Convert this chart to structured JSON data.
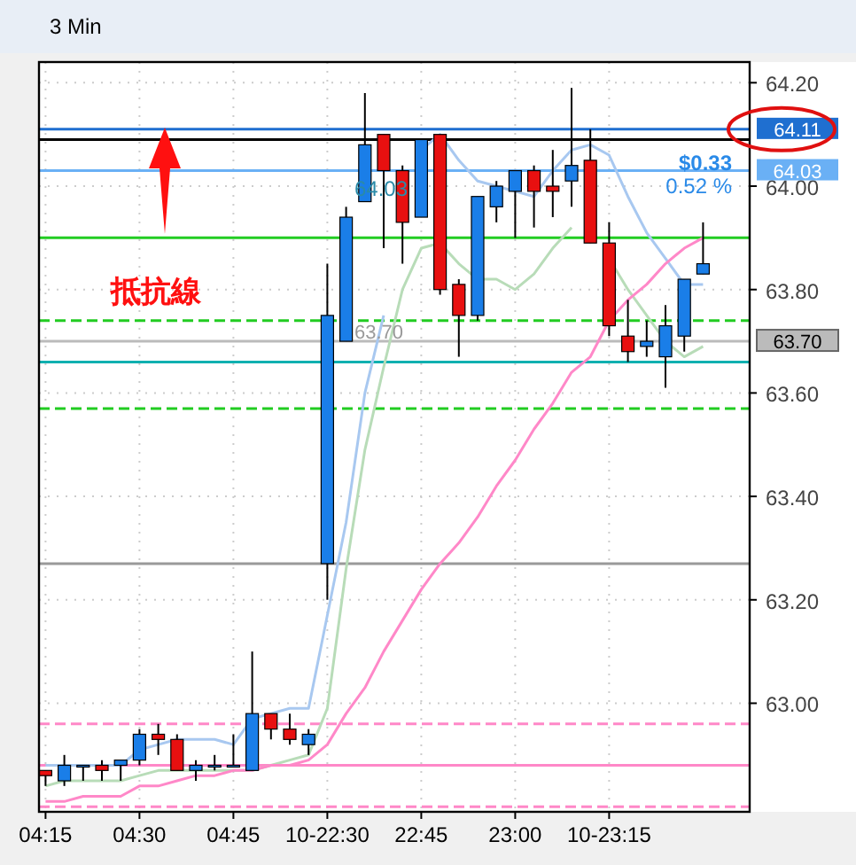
{
  "chart_data": {
    "type": "candlestick",
    "title": "3 Min",
    "categories": [
      "04:15",
      null,
      null,
      null,
      null,
      "04:30",
      null,
      null,
      null,
      null,
      "04:45",
      null,
      null,
      null,
      null,
      "10-22:30",
      null,
      null,
      null,
      null,
      "22:45",
      null,
      null,
      null,
      null,
      "23:00",
      null,
      null,
      null,
      null,
      "10-23:15",
      null,
      null,
      null,
      null,
      null
    ],
    "ohlc": [
      [
        62.87,
        62.87,
        62.84,
        62.86
      ],
      [
        62.85,
        62.9,
        62.84,
        62.88
      ],
      [
        62.88,
        62.88,
        62.85,
        62.88
      ],
      [
        62.88,
        62.89,
        62.85,
        62.87
      ],
      [
        62.88,
        62.89,
        62.85,
        62.89
      ],
      [
        62.89,
        62.95,
        62.88,
        62.94
      ],
      [
        62.94,
        62.96,
        62.9,
        62.93
      ],
      [
        62.93,
        62.94,
        62.87,
        62.87
      ],
      [
        62.87,
        62.89,
        62.85,
        62.88
      ],
      [
        62.88,
        62.9,
        62.87,
        62.88
      ],
      [
        62.88,
        62.94,
        62.88,
        62.88
      ],
      [
        62.87,
        63.1,
        62.87,
        62.98
      ],
      [
        62.98,
        62.98,
        62.93,
        62.95
      ],
      [
        62.95,
        62.98,
        62.92,
        62.93
      ],
      [
        62.92,
        62.95,
        62.9,
        62.94
      ],
      [
        63.27,
        63.85,
        63.2,
        63.75
      ],
      [
        63.7,
        63.96,
        63.7,
        63.94
      ],
      [
        63.97,
        64.18,
        63.97,
        64.08
      ],
      [
        64.1,
        64.1,
        63.88,
        64.03
      ],
      [
        64.03,
        64.04,
        63.85,
        63.93
      ],
      [
        63.94,
        64.09,
        63.94,
        64.09
      ],
      [
        64.1,
        64.1,
        63.79,
        63.8
      ],
      [
        63.81,
        63.82,
        63.67,
        63.75
      ],
      [
        63.75,
        63.98,
        63.74,
        63.98
      ],
      [
        63.96,
        64.01,
        63.93,
        64.0
      ],
      [
        63.99,
        64.03,
        63.9,
        64.03
      ],
      [
        64.03,
        64.04,
        63.92,
        63.99
      ],
      [
        64.0,
        64.07,
        63.94,
        63.99
      ],
      [
        64.01,
        64.19,
        63.96,
        64.04
      ],
      [
        64.05,
        64.11,
        63.89,
        63.89
      ],
      [
        63.89,
        63.93,
        63.71,
        63.73
      ],
      [
        63.71,
        63.78,
        63.66,
        63.68
      ],
      [
        63.69,
        63.74,
        63.67,
        63.7
      ],
      [
        63.67,
        63.77,
        63.61,
        63.73
      ],
      [
        63.71,
        63.82,
        63.68,
        63.82
      ],
      [
        63.83,
        63.93,
        63.83,
        63.85
      ]
    ],
    "colors": [
      "#e81010",
      "#1a7ee8",
      "#1a7ee8",
      "#e81010",
      "#1a7ee8",
      "#1a7ee8",
      "#e81010",
      "#e81010",
      "#1a7ee8",
      "#1a7ee8",
      "#1a7ee8",
      "#1a7ee8",
      "#e81010",
      "#e81010",
      "#1a7ee8",
      "#1a7ee8",
      "#1a7ee8",
      "#1a7ee8",
      "#e81010",
      "#e81010",
      "#1a7ee8",
      "#e81010",
      "#e81010",
      "#1a7ee8",
      "#1a7ee8",
      "#1a7ee8",
      "#e81010",
      "#e81010",
      "#1a7ee8",
      "#e81010",
      "#e81010",
      "#e81010",
      "#1a7ee8",
      "#1a7ee8",
      "#1a7ee8",
      "#1a7ee8"
    ],
    "series": [
      {
        "type": "line",
        "color": "#a8c8f0",
        "values": [
          62.88,
          62.88,
          62.88,
          62.88,
          62.88,
          62.91,
          62.92,
          62.93,
          62.93,
          62.93,
          62.92,
          62.97,
          62.98,
          62.99,
          62.99,
          63.17,
          63.35,
          63.6,
          63.75,
          null,
          64.07,
          64.1,
          64.05,
          64.01,
          64.0,
          63.99,
          63.98,
          64.03,
          64.07,
          64.08,
          64.06,
          63.98,
          63.91,
          63.86,
          63.81,
          63.81
        ]
      },
      {
        "type": "line",
        "color": "#b8dcb8",
        "values": [
          62.84,
          62.85,
          62.85,
          62.85,
          62.85,
          62.86,
          62.87,
          62.87,
          62.87,
          62.87,
          62.87,
          62.87,
          62.88,
          62.89,
          62.9,
          62.99,
          63.26,
          63.49,
          63.65,
          63.8,
          63.88,
          63.89,
          63.85,
          63.82,
          63.82,
          63.8,
          63.83,
          63.88,
          63.92,
          null,
          63.86,
          63.8,
          63.75,
          63.7,
          63.67,
          63.69
        ]
      },
      {
        "type": "line",
        "color": "#ff88c8",
        "values": [
          62.81,
          62.81,
          62.82,
          62.82,
          62.82,
          62.84,
          62.84,
          62.85,
          62.86,
          62.86,
          62.87,
          62.87,
          62.88,
          62.88,
          62.89,
          62.92,
          62.98,
          63.03,
          63.1,
          63.16,
          63.22,
          63.27,
          63.31,
          63.36,
          63.42,
          63.47,
          63.53,
          63.58,
          63.64,
          63.67,
          63.74,
          63.78,
          63.81,
          63.85,
          63.88,
          63.9
        ]
      }
    ],
    "ylim": [
      62.79,
      64.24
    ],
    "yticks": [
      {
        "value": 63,
        "label": "63.00"
      },
      {
        "value": 63.2,
        "label": "63.20"
      },
      {
        "value": 63.4,
        "label": "63.40"
      },
      {
        "value": 63.6,
        "label": "63.60"
      },
      {
        "value": 63.8,
        "label": "63.80"
      },
      {
        "value": 64,
        "label": "64.00"
      },
      {
        "value": 64.2,
        "label": "64.20"
      }
    ],
    "grid": true,
    "ref_lines": [
      {
        "axis": "y",
        "value": 64.11,
        "label": "64.11",
        "color": "#1f6fd0"
      },
      {
        "axis": "y",
        "value": 64.09,
        "color": "#000000"
      },
      {
        "axis": "y",
        "value": 64.03,
        "label": "64.03",
        "color": "#6ab0f5"
      },
      {
        "axis": "y",
        "value": 63.9,
        "color": "#22cc22"
      },
      {
        "axis": "y",
        "value": 63.74,
        "color": "#22cc22",
        "line_style": "dashed"
      },
      {
        "axis": "y",
        "value": 63.7,
        "label": "63.70",
        "color": "#bbbbbb"
      },
      {
        "axis": "y",
        "value": 63.66,
        "color": "#10b0b0"
      },
      {
        "axis": "y",
        "value": 63.57,
        "color": "#22cc22",
        "line_style": "dashed"
      },
      {
        "axis": "y",
        "value": 63.27,
        "color": "#999999"
      },
      {
        "axis": "y",
        "value": 62.96,
        "color": "#ff88c8",
        "line_style": "dashed"
      },
      {
        "axis": "y",
        "value": 62.88,
        "color": "#ff88c8"
      },
      {
        "axis": "y",
        "value": 62.8,
        "color": "#ff88c8",
        "line_style": "dashed"
      }
    ],
    "annotations": [
      "抵抗線",
      "$0.33",
      "0.52 %",
      {
        "text": "64.03",
        "y": 64.03
      },
      {
        "text": "63.70",
        "y": 63.7
      }
    ]
  }
}
